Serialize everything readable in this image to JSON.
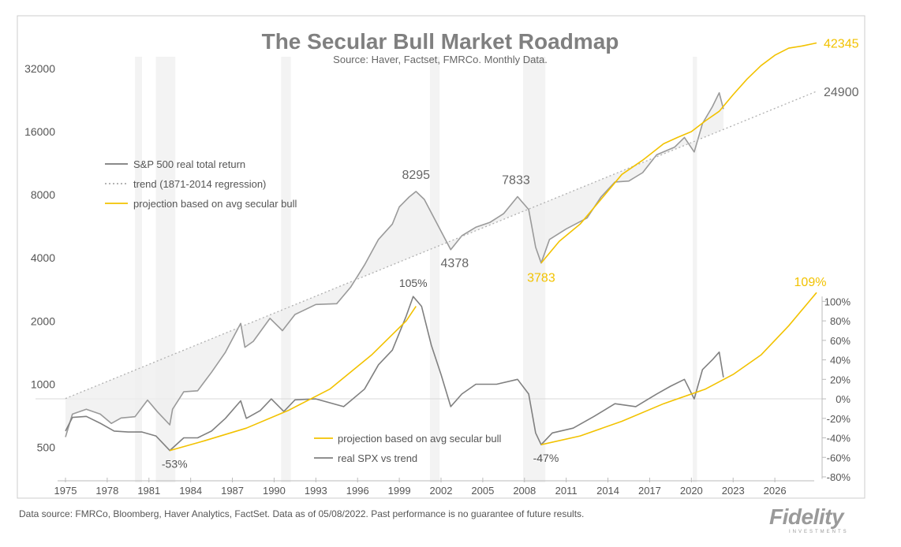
{
  "chart_data": {
    "type": "line",
    "title": "The Secular Bull Market Roadmap",
    "subtitle": "Source: Haver, Factset, FMRCo.  Monthly Data.",
    "x_ticks": [
      "1975",
      "1978",
      "1981",
      "1984",
      "1987",
      "1990",
      "1993",
      "1996",
      "1999",
      "2002",
      "2005",
      "2008",
      "2011",
      "2014",
      "2017",
      "2020",
      "2023",
      "2026"
    ],
    "x_range": [
      1975,
      2029
    ],
    "left_axis": {
      "scale": "log2",
      "ticks": [
        "500",
        "1000",
        "2000",
        "4000",
        "8000",
        "16000",
        "32000"
      ],
      "tick_values": [
        500,
        1000,
        2000,
        4000,
        8000,
        16000,
        32000
      ],
      "range": [
        430,
        48000
      ]
    },
    "right_axis": {
      "ticks": [
        "100%",
        "80%",
        "60%",
        "40%",
        "20%",
        "0%",
        "-20%",
        "-40%",
        "-60%",
        "-80%"
      ],
      "tick_values": [
        100,
        80,
        60,
        40,
        20,
        0,
        -20,
        -40,
        -60,
        -80
      ],
      "range": [
        -80,
        110
      ]
    },
    "recession_bands": [
      [
        1980.0,
        1980.5
      ],
      [
        1981.5,
        1982.9
      ],
      [
        1990.5,
        1991.2
      ],
      [
        2001.2,
        2001.9
      ],
      [
        2007.9,
        2009.5
      ],
      [
        2020.1,
        2020.4
      ]
    ],
    "top_legend": [
      {
        "label": "S&P 500 real total return",
        "color": "#7a7a7a",
        "style": "solid"
      },
      {
        "label": "trend (1871-2014 regression)",
        "color": "#aaaaaa",
        "style": "dotted"
      },
      {
        "label": "projection based on avg secular bull",
        "color": "#f2c200",
        "style": "solid"
      }
    ],
    "bottom_legend": [
      {
        "label": "projection based on avg secular bull",
        "color": "#f2c200"
      },
      {
        "label": "real SPX vs trend",
        "color": "#808080"
      }
    ],
    "series": [
      {
        "name": "S&P 500 real total return",
        "axis": "left",
        "color": "#9a9a9a",
        "points": [
          [
            1975.0,
            560
          ],
          [
            1975.5,
            720
          ],
          [
            1976.5,
            760
          ],
          [
            1977.5,
            720
          ],
          [
            1978.3,
            650
          ],
          [
            1979.0,
            690
          ],
          [
            1980.0,
            700
          ],
          [
            1980.9,
            840
          ],
          [
            1981.6,
            740
          ],
          [
            1982.5,
            640
          ],
          [
            1982.7,
            760
          ],
          [
            1983.5,
            920
          ],
          [
            1984.5,
            930
          ],
          [
            1985.5,
            1140
          ],
          [
            1986.5,
            1420
          ],
          [
            1987.6,
            1950
          ],
          [
            1987.9,
            1500
          ],
          [
            1988.5,
            1600
          ],
          [
            1989.7,
            2060
          ],
          [
            1990.6,
            1800
          ],
          [
            1991.5,
            2150
          ],
          [
            1993.0,
            2400
          ],
          [
            1994.5,
            2420
          ],
          [
            1995.5,
            2900
          ],
          [
            1996.5,
            3700
          ],
          [
            1997.5,
            4900
          ],
          [
            1998.5,
            5800
          ],
          [
            1999.0,
            7000
          ],
          [
            1999.7,
            7800
          ],
          [
            2000.2,
            8295
          ],
          [
            2000.8,
            7600
          ],
          [
            2001.5,
            6200
          ],
          [
            2002.7,
            4378
          ],
          [
            2003.5,
            5100
          ],
          [
            2004.5,
            5600
          ],
          [
            2005.5,
            5900
          ],
          [
            2006.5,
            6500
          ],
          [
            2007.5,
            7833
          ],
          [
            2008.3,
            6800
          ],
          [
            2008.8,
            4500
          ],
          [
            2009.2,
            3783
          ],
          [
            2009.8,
            4900
          ],
          [
            2011.0,
            5500
          ],
          [
            2012.5,
            6200
          ],
          [
            2013.5,
            7800
          ],
          [
            2014.5,
            9200
          ],
          [
            2015.5,
            9300
          ],
          [
            2016.5,
            10200
          ],
          [
            2017.5,
            12400
          ],
          [
            2018.8,
            13500
          ],
          [
            2019.5,
            15000
          ],
          [
            2020.2,
            12800
          ],
          [
            2020.8,
            17500
          ],
          [
            2021.5,
            21000
          ],
          [
            2022.0,
            24500
          ],
          [
            2022.3,
            20500
          ]
        ]
      },
      {
        "name": "trend (1871-2014 regression)",
        "axis": "left",
        "color": "#b0b0b0",
        "points": [
          [
            1975.0,
            855
          ],
          [
            2029.0,
            24900
          ]
        ],
        "end_label": "24900"
      },
      {
        "name": "projection based on avg secular bull",
        "axis": "left",
        "color": "#f2c200",
        "points": [
          [
            2009.2,
            3783
          ],
          [
            2010.5,
            4800
          ],
          [
            2012.0,
            5800
          ],
          [
            2013.5,
            7600
          ],
          [
            2015.0,
            10000
          ],
          [
            2016.5,
            11700
          ],
          [
            2018.0,
            14000
          ],
          [
            2019.0,
            15000
          ],
          [
            2020.0,
            16000
          ],
          [
            2021.0,
            18000
          ],
          [
            2022.0,
            20000
          ],
          [
            2023.0,
            24000
          ],
          [
            2024.0,
            28500
          ],
          [
            2025.0,
            33000
          ],
          [
            2026.0,
            37000
          ],
          [
            2027.0,
            40000
          ],
          [
            2028.0,
            41000
          ],
          [
            2029.0,
            42345
          ]
        ],
        "end_label": "42345"
      },
      {
        "name": "real SPX vs trend",
        "axis": "right",
        "color": "#808080",
        "points": [
          [
            1975.0,
            -33
          ],
          [
            1975.5,
            -19
          ],
          [
            1976.5,
            -18
          ],
          [
            1977.5,
            -25
          ],
          [
            1978.5,
            -33
          ],
          [
            1979.5,
            -34
          ],
          [
            1980.5,
            -34
          ],
          [
            1981.5,
            -38
          ],
          [
            1982.5,
            -53
          ],
          [
            1983.5,
            -40
          ],
          [
            1984.5,
            -40
          ],
          [
            1985.5,
            -33
          ],
          [
            1986.5,
            -20
          ],
          [
            1987.6,
            -2
          ],
          [
            1988.0,
            -20
          ],
          [
            1989.0,
            -12
          ],
          [
            1989.8,
            0
          ],
          [
            1990.7,
            -13
          ],
          [
            1991.5,
            -1
          ],
          [
            1993.0,
            0
          ],
          [
            1995.0,
            -8
          ],
          [
            1996.5,
            10
          ],
          [
            1997.5,
            35
          ],
          [
            1998.5,
            50
          ],
          [
            1999.5,
            85
          ],
          [
            2000.0,
            105
          ],
          [
            2000.6,
            95
          ],
          [
            2001.3,
            55
          ],
          [
            2002.0,
            25
          ],
          [
            2002.7,
            -8
          ],
          [
            2003.5,
            5
          ],
          [
            2004.5,
            15
          ],
          [
            2006.0,
            15
          ],
          [
            2007.5,
            20
          ],
          [
            2008.3,
            5
          ],
          [
            2008.8,
            -35
          ],
          [
            2009.2,
            -47
          ],
          [
            2010.0,
            -35
          ],
          [
            2011.5,
            -30
          ],
          [
            2013.0,
            -18
          ],
          [
            2014.5,
            -5
          ],
          [
            2016.0,
            -8
          ],
          [
            2017.5,
            5
          ],
          [
            2018.5,
            13
          ],
          [
            2019.5,
            20
          ],
          [
            2020.2,
            0
          ],
          [
            2020.8,
            30
          ],
          [
            2021.5,
            40
          ],
          [
            2022.0,
            48
          ],
          [
            2022.3,
            22
          ]
        ],
        "labels": [
          {
            "x": 1982.5,
            "text": "-53%"
          },
          {
            "x": 2000.0,
            "text": "105%"
          },
          {
            "x": 2009.2,
            "text": "-47%"
          }
        ]
      },
      {
        "name": "projection based on avg secular bull (vs trend)",
        "axis": "right",
        "color": "#f2c200",
        "points": [
          [
            1982.5,
            -53
          ],
          [
            1985.0,
            -43
          ],
          [
            1988.0,
            -30
          ],
          [
            1991.0,
            -12
          ],
          [
            1994.0,
            10
          ],
          [
            1997.0,
            45
          ],
          [
            1999.5,
            80
          ],
          [
            2000.2,
            95
          ]
        ]
      },
      {
        "name": "projection based on avg secular bull (vs trend, current bull)",
        "axis": "right",
        "color": "#f2c200",
        "points": [
          [
            2009.2,
            -47
          ],
          [
            2012.0,
            -38
          ],
          [
            2015.0,
            -23
          ],
          [
            2018.0,
            -5
          ],
          [
            2021.0,
            10
          ],
          [
            2023.0,
            25
          ],
          [
            2025.0,
            45
          ],
          [
            2027.0,
            75
          ],
          [
            2029.0,
            109
          ]
        ],
        "end_label": "109%"
      }
    ],
    "annotations": [
      {
        "text": "8295",
        "x": 2000.2,
        "y": 8295,
        "axis": "left",
        "color": "#666666",
        "dx": 0,
        "dy": -16
      },
      {
        "text": "4378",
        "x": 2002.7,
        "y": 4378,
        "axis": "left",
        "color": "#666666",
        "dx": 5,
        "dy": 22
      },
      {
        "text": "7833",
        "x": 2007.5,
        "y": 7833,
        "axis": "left",
        "color": "#666666",
        "dx": -2,
        "dy": -16
      },
      {
        "text": "3783",
        "x": 2009.2,
        "y": 3783,
        "axis": "left",
        "color": "#f2c200",
        "dx": 0,
        "dy": 24
      }
    ]
  },
  "footer": {
    "disclaimer": "Data source: FMRCo, Bloomberg, Haver Analytics, FactSet. Data as of 05/08/2022. Past performance is no guarantee of future results.",
    "logo_text": "Fidelity",
    "logo_sub": "INVESTMENTS"
  }
}
